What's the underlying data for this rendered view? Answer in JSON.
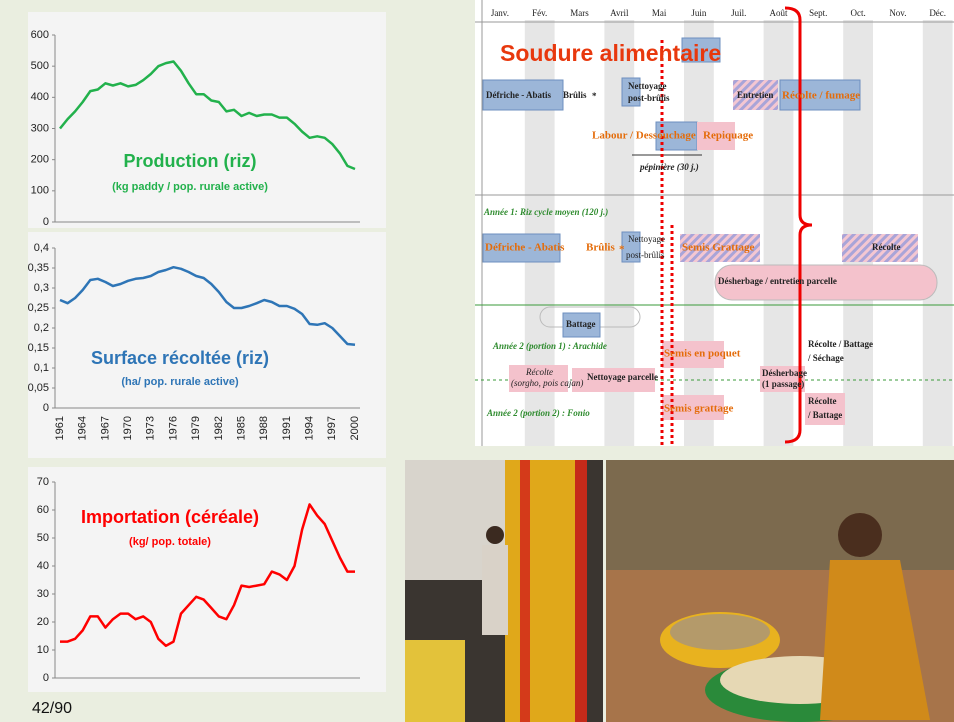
{
  "chart_data": [
    {
      "type": "line",
      "title": "Production (riz)",
      "subtitle": "(kg paddy / pop. rurale active)",
      "color": "#22b14c",
      "values": [
        300,
        330,
        355,
        385,
        420,
        425,
        445,
        438,
        445,
        435,
        440,
        455,
        475,
        500,
        510,
        515,
        485,
        445,
        410,
        410,
        390,
        385,
        355,
        360,
        340,
        350,
        340,
        345,
        345,
        335,
        335,
        315,
        290,
        270,
        275,
        270,
        250,
        220,
        180,
        170
      ],
      "ylim": [
        0,
        600
      ],
      "yticks": [
        0,
        100,
        200,
        300,
        400,
        500,
        600
      ]
    },
    {
      "type": "line",
      "title": "Surface récoltée (riz)",
      "subtitle": "(ha/ pop. rurale active)",
      "color": "#2e75b6",
      "categories": [
        "1961",
        null,
        null,
        "1964",
        null,
        null,
        "1967",
        null,
        null,
        "1970",
        null,
        null,
        "1973",
        null,
        null,
        "1976",
        null,
        null,
        "1979",
        null,
        null,
        "1982",
        null,
        null,
        "1985",
        null,
        null,
        "1988",
        null,
        null,
        "1991",
        null,
        null,
        "1994",
        null,
        null,
        "1997",
        null,
        null,
        "2000"
      ],
      "values": [
        0.27,
        0.262,
        0.275,
        0.295,
        0.32,
        0.323,
        0.315,
        0.305,
        0.31,
        0.318,
        0.323,
        0.325,
        0.33,
        0.34,
        0.345,
        0.352,
        0.348,
        0.34,
        0.33,
        0.325,
        0.31,
        0.29,
        0.265,
        0.25,
        0.25,
        0.255,
        0.262,
        0.27,
        0.265,
        0.255,
        0.255,
        0.248,
        0.235,
        0.21,
        0.208,
        0.212,
        0.2,
        0.18,
        0.16,
        0.158
      ],
      "ylim": [
        0,
        0.4
      ],
      "yticks": [
        0,
        {
          "value": 0.05,
          "label": "0,05"
        },
        {
          "value": 0.1,
          "label": "0,1"
        },
        {
          "value": 0.15,
          "label": "0,15"
        },
        {
          "value": 0.2,
          "label": "0,2"
        },
        {
          "value": 0.25,
          "label": "0,25"
        },
        {
          "value": 0.3,
          "label": "0,3"
        },
        {
          "value": 0.35,
          "label": "0,35"
        },
        {
          "value": 0.4,
          "label": "0,4"
        }
      ]
    },
    {
      "type": "line",
      "title": "Importation (céréale)",
      "subtitle": "(kg/ pop. totale)",
      "color": "#ff0000",
      "values": [
        13,
        13,
        14,
        17,
        22,
        22,
        18,
        21,
        23,
        23,
        21,
        22,
        20,
        14,
        11.5,
        13,
        23,
        26,
        29,
        28,
        25,
        22,
        21,
        26,
        33,
        32.5,
        33,
        33.5,
        38,
        37,
        35,
        40,
        53,
        62,
        58,
        55,
        49,
        43,
        38,
        38
      ],
      "ylim": [
        0,
        70
      ],
      "yticks": [
        0,
        10,
        20,
        30,
        40,
        50,
        60,
        70
      ]
    }
  ],
  "calendar": {
    "title": "Soudure alimentaire",
    "months": [
      "Janv.",
      "Fév.",
      "Mars",
      "Avril",
      "Mai",
      "Juin",
      "Juil.",
      "Août",
      "Sept.",
      "Oct.",
      "Nov.",
      "Déc."
    ],
    "items": [
      "Défriche - Abatis",
      "Brûlis",
      "*",
      "Nettoyage",
      "post-brûlis",
      "Entretien",
      "Récolte / fumage",
      "Labour / Dessouchage",
      "Repiquage",
      "pépinière (30 j.)",
      "Année 1: Riz cycle moyen (120 j.)",
      "Défriche - Abatis",
      "Brûlis",
      "*",
      "Nettoyage",
      "post-brûlis",
      "Semis Grattage",
      "Récolte",
      "Désherbage / entretien parcelle",
      "Battage",
      "Année 2 (portion 1) : Arachide",
      "Semis en poquet",
      "Récolte / Battage",
      "/ Séchage",
      "Récolte",
      "(sorgho, pois cajan)",
      "Nettoyage parcelle",
      "Désherbage",
      "(1 passage)",
      "Année 2 (portion 2) : Fonio",
      "Semis grattage",
      "Récolte",
      "/ Battage"
    ]
  },
  "page_number": "42/90"
}
